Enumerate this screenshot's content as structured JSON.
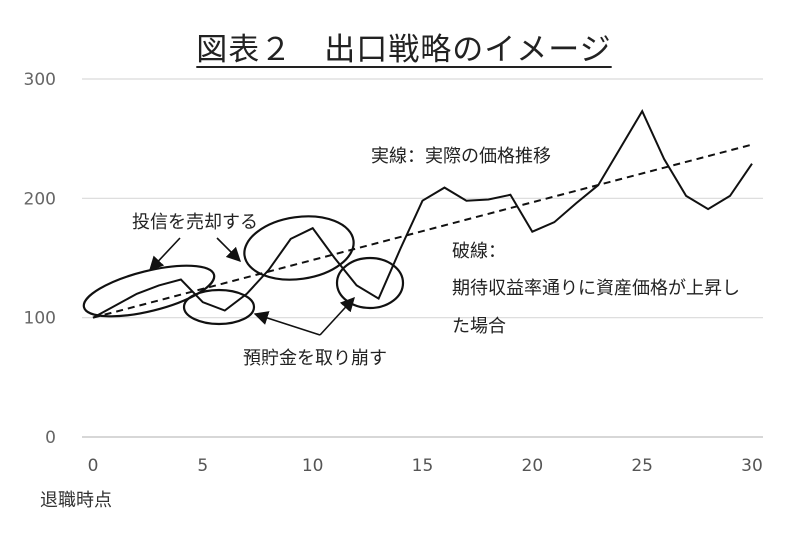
{
  "chart_data": {
    "type": "line",
    "title": "図表２　出口戦略のイメージ",
    "xlabel": "退職時点",
    "ylabel": "",
    "xlim": [
      0,
      30
    ],
    "ylim": [
      0,
      300
    ],
    "x_ticks": [
      0,
      5,
      10,
      15,
      20,
      25,
      30
    ],
    "y_ticks": [
      0,
      100,
      200,
      300
    ],
    "grid": "horizontal",
    "legend": "none",
    "series": [
      {
        "style": "solid",
        "x": [
          0,
          1,
          2,
          3,
          4,
          5,
          6,
          7,
          8,
          9,
          10,
          11,
          12,
          13,
          14,
          15,
          16,
          17,
          18,
          19,
          20,
          21,
          22,
          23,
          24,
          25,
          26,
          27,
          28,
          29,
          30
        ],
        "values": [
          100,
          110,
          120,
          127,
          132,
          113,
          106,
          120,
          140,
          166,
          175,
          150,
          127,
          116,
          158,
          198,
          209,
          198,
          199,
          203,
          172,
          180,
          196,
          211,
          242,
          273,
          233,
          202,
          191,
          202,
          229
        ]
      },
      {
        "style": "dashed",
        "x": [
          0,
          30
        ],
        "values": [
          100,
          245
        ]
      }
    ],
    "annotations": {
      "solid_line": "実線：実際の価格推移",
      "dashed_line_1": "破線：",
      "dashed_line_2": "期待収益率通りに資産価格が上昇し",
      "dashed_line_3": "た場合",
      "sell": "投信を売却する",
      "withdraw": "預貯金を取り崩す"
    }
  }
}
